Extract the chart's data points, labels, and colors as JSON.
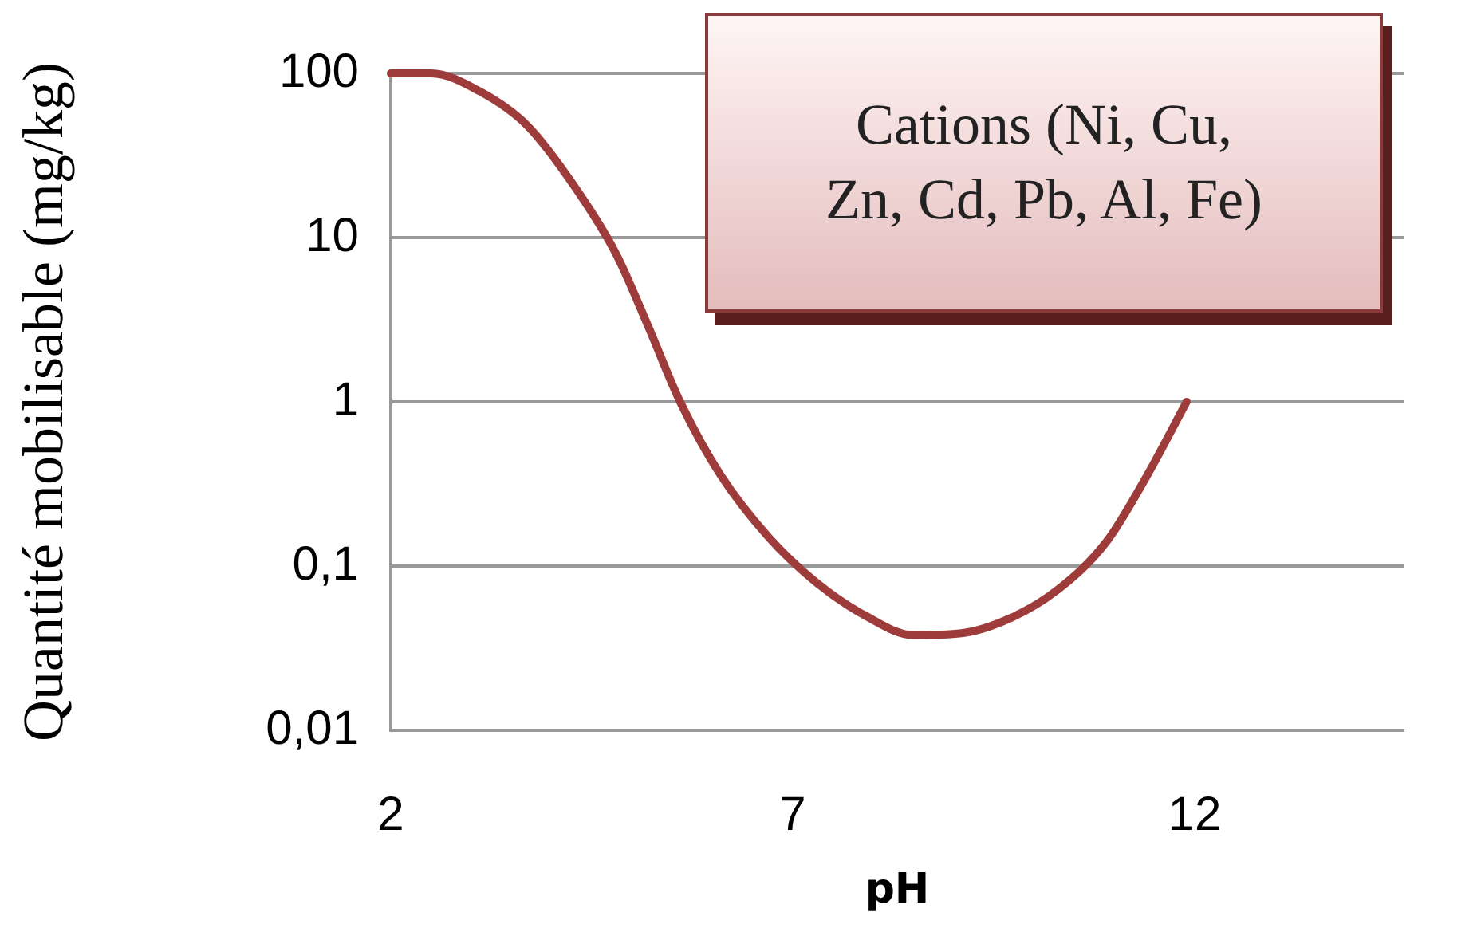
{
  "chart_data": {
    "type": "line",
    "xlabel": "pH",
    "ylabel": "Quantité mobilisable (mg/kg)",
    "annotations": [
      "Cations (Ni, Cu,\nZn, Cd, Pb, Al, Fe)"
    ],
    "series": [
      {
        "color": "#9e3b3b",
        "x": [
          2,
          2.5,
          3.1,
          3.7,
          4.3,
          4.8,
          5.2,
          5.6,
          6.1,
          6.7,
          7.3,
          7.9,
          8.5,
          9.1,
          9.7,
          10.3,
          10.9,
          11.4,
          11.9
        ],
        "values": [
          100,
          100,
          78,
          48,
          20,
          8,
          2.9,
          1,
          0.36,
          0.15,
          0.079,
          0.05,
          0.038,
          0.039,
          0.048,
          0.072,
          0.14,
          0.35,
          1
        ]
      }
    ],
    "xlim": [
      2,
      14.6
    ],
    "xticks": [
      2,
      7,
      12
    ],
    "ylim": [
      0.01,
      100
    ],
    "yticks": [
      {
        "value": 0.01,
        "label": "0,01"
      },
      {
        "value": 0.1,
        "label": "0,1"
      },
      1,
      10,
      100
    ],
    "log": "y",
    "grid": "y",
    "marker": "none",
    "line_style": "solid",
    "legend": false
  }
}
